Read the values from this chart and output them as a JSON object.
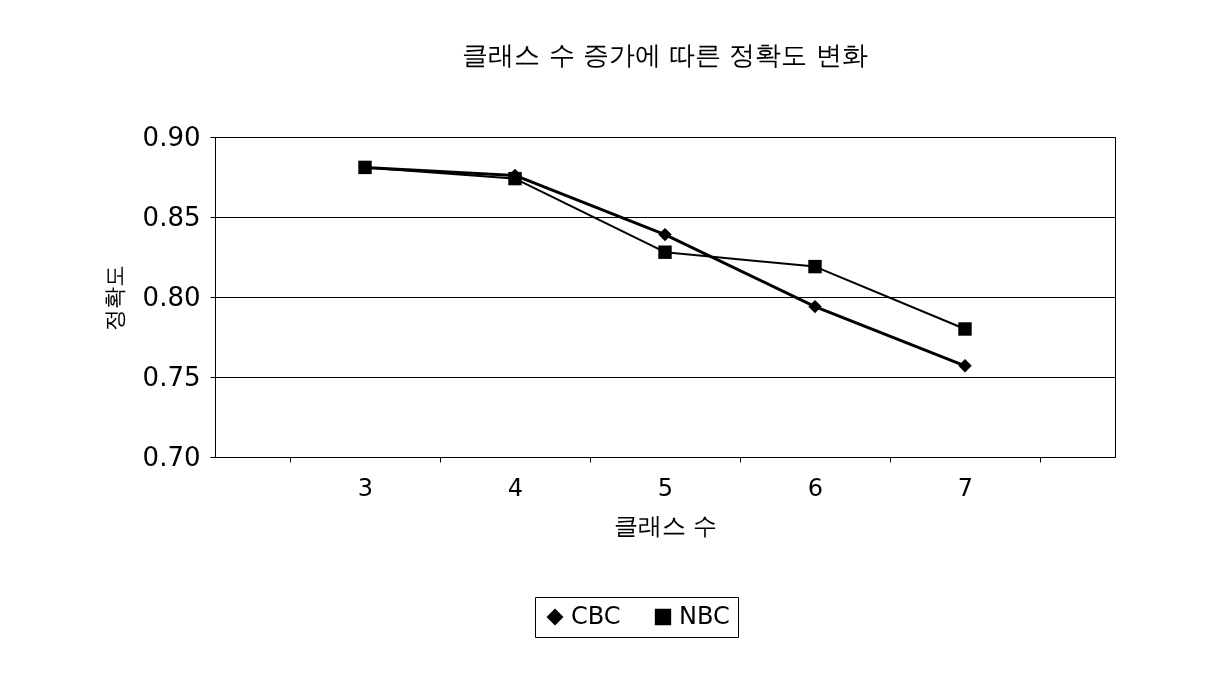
{
  "chart_data": {
    "type": "line",
    "title": "클래스 수 증가에 따른 정확도 변화",
    "xlabel": "클래스 수",
    "ylabel": "정확도",
    "categories": [
      "3",
      "4",
      "5",
      "6",
      "7"
    ],
    "series": [
      {
        "name": "CBC",
        "color": "#000000",
        "marker": "diamond",
        "values": [
          0.881,
          0.876,
          0.839,
          0.794,
          0.757
        ]
      },
      {
        "name": "NBC",
        "color": "#000000",
        "marker": "square",
        "values": [
          0.881,
          0.874,
          0.828,
          0.819,
          0.78
        ]
      }
    ],
    "ylim": [
      0.7,
      0.9
    ],
    "yticks": [
      {
        "value": 0.7,
        "label": "0.70"
      },
      0.75,
      {
        "value": 0.8,
        "label": "0.80"
      },
      0.85,
      {
        "value": 0.9,
        "label": "0.90"
      }
    ],
    "grid": "y",
    "legend": "bottom",
    "line_style": "solid"
  }
}
